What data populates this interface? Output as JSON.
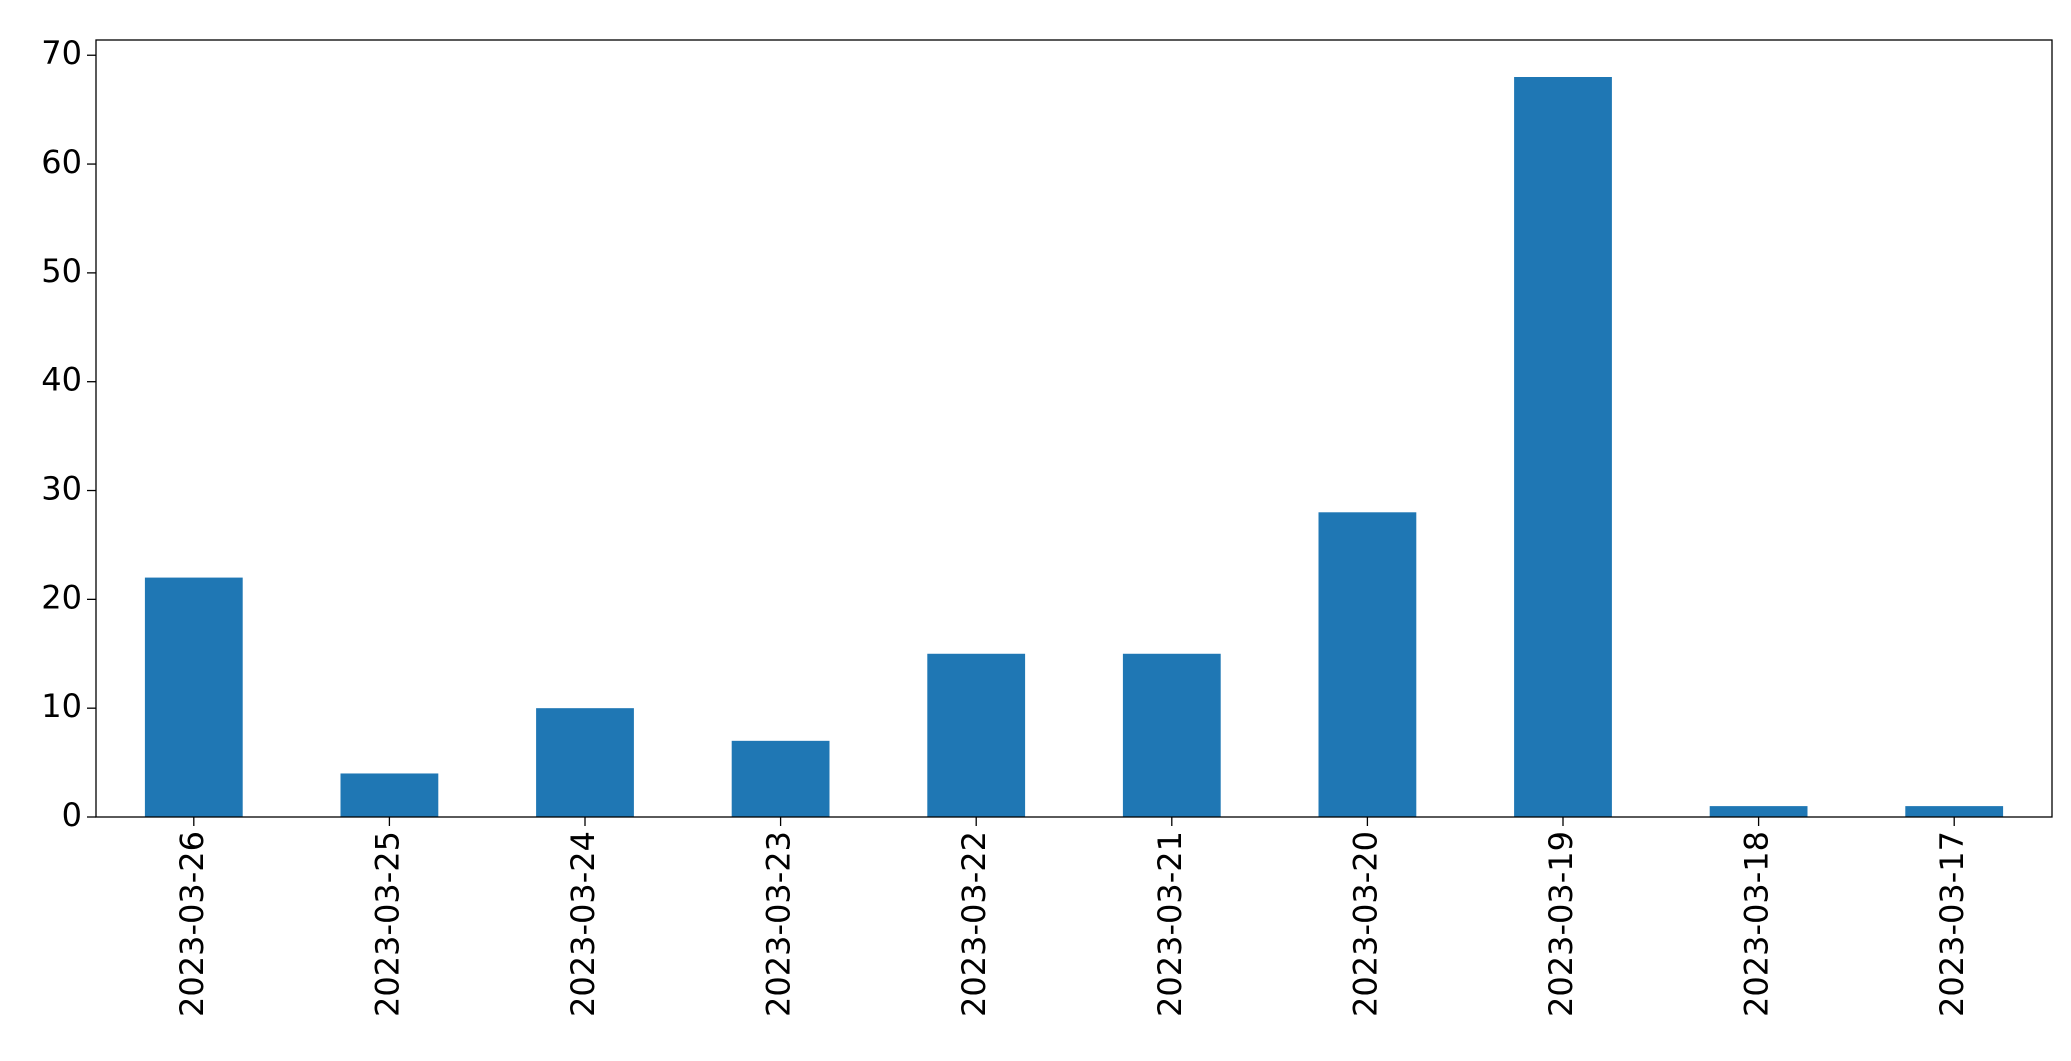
{
  "chart_data": {
    "type": "bar",
    "categories": [
      "2023-03-26",
      "2023-03-25",
      "2023-03-24",
      "2023-03-23",
      "2023-03-22",
      "2023-03-21",
      "2023-03-20",
      "2023-03-19",
      "2023-03-18",
      "2023-03-17"
    ],
    "values": [
      22,
      4,
      10,
      7,
      15,
      15,
      28,
      68,
      1,
      1
    ],
    "color": "#1f77b4",
    "ylim": [
      0,
      71.4
    ],
    "yticks": [
      0,
      10,
      20,
      30,
      40,
      50,
      60,
      70
    ],
    "grid": false
  }
}
